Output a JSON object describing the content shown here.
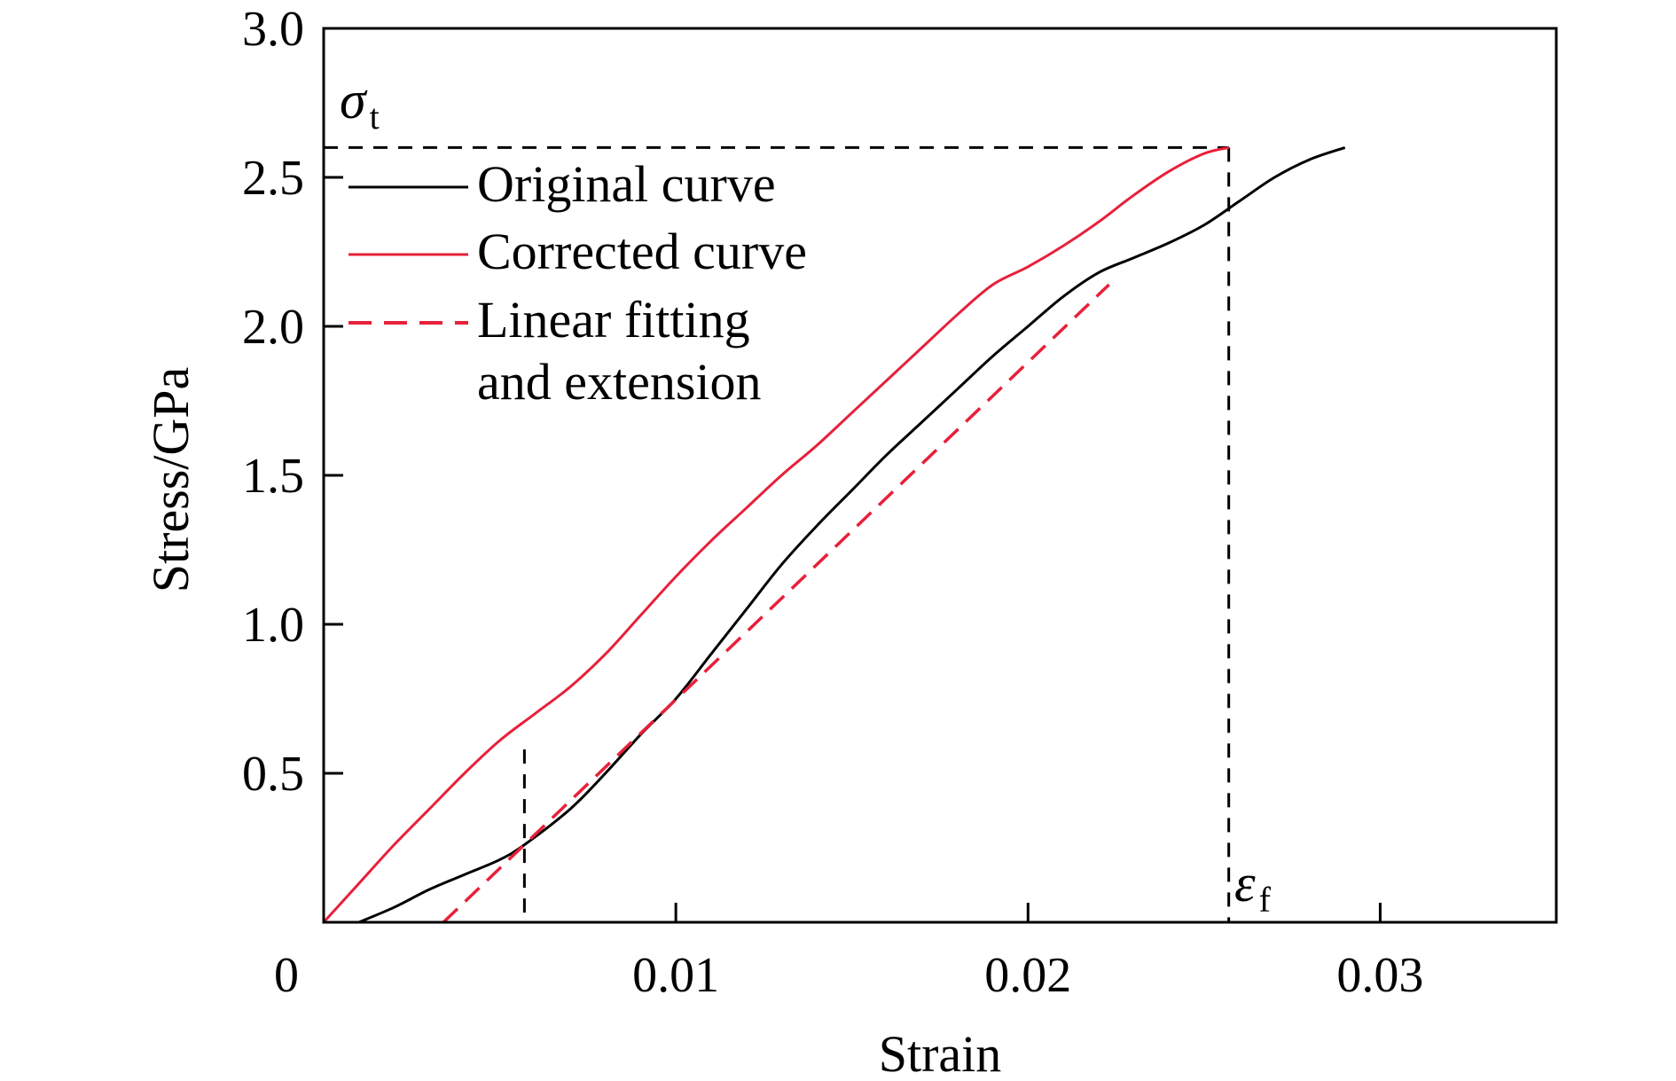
{
  "chart_data": {
    "type": "line",
    "xlabel": "Strain",
    "ylabel": "Stress/GPa",
    "xlim": [
      0,
      0.035
    ],
    "ylim": [
      0,
      3.0
    ],
    "x_ticks": [
      0.01,
      0.02,
      0.03
    ],
    "x_tick_labels": [
      "0.01",
      "0.02",
      "0.03"
    ],
    "origin_label": "0",
    "y_ticks": [
      0.5,
      1.0,
      1.5,
      2.0,
      2.5,
      3.0
    ],
    "y_tick_labels": [
      "0.5",
      "1.0",
      "1.5",
      "2.0",
      "2.5",
      "3.0"
    ],
    "grid": false,
    "legend_position": "upper-left",
    "series": [
      {
        "name": "Original curve",
        "color": "#000000",
        "style": "solid",
        "points": [
          [
            0.001,
            0.0
          ],
          [
            0.002,
            0.05
          ],
          [
            0.003,
            0.11
          ],
          [
            0.004,
            0.16
          ],
          [
            0.005,
            0.21
          ],
          [
            0.0057,
            0.26
          ],
          [
            0.007,
            0.38
          ],
          [
            0.008,
            0.5
          ],
          [
            0.009,
            0.63
          ],
          [
            0.01,
            0.75
          ],
          [
            0.011,
            0.9
          ],
          [
            0.012,
            1.05
          ],
          [
            0.013,
            1.2
          ],
          [
            0.014,
            1.33
          ],
          [
            0.015,
            1.45
          ],
          [
            0.016,
            1.57
          ],
          [
            0.017,
            1.68
          ],
          [
            0.018,
            1.79
          ],
          [
            0.019,
            1.9
          ],
          [
            0.02,
            2.0
          ],
          [
            0.021,
            2.1
          ],
          [
            0.022,
            2.18
          ],
          [
            0.023,
            2.23
          ],
          [
            0.024,
            2.28
          ],
          [
            0.025,
            2.34
          ],
          [
            0.026,
            2.42
          ],
          [
            0.027,
            2.5
          ],
          [
            0.028,
            2.56
          ],
          [
            0.029,
            2.6
          ]
        ]
      },
      {
        "name": "Corrected curve",
        "color": "#e8203a",
        "style": "solid",
        "points": [
          [
            0.0,
            0.0
          ],
          [
            0.001,
            0.13
          ],
          [
            0.002,
            0.26
          ],
          [
            0.003,
            0.38
          ],
          [
            0.004,
            0.5
          ],
          [
            0.005,
            0.61
          ],
          [
            0.006,
            0.7
          ],
          [
            0.007,
            0.79
          ],
          [
            0.008,
            0.9
          ],
          [
            0.009,
            1.03
          ],
          [
            0.01,
            1.16
          ],
          [
            0.011,
            1.28
          ],
          [
            0.012,
            1.39
          ],
          [
            0.013,
            1.5
          ],
          [
            0.014,
            1.6
          ],
          [
            0.015,
            1.71
          ],
          [
            0.016,
            1.82
          ],
          [
            0.017,
            1.93
          ],
          [
            0.018,
            2.04
          ],
          [
            0.019,
            2.14
          ],
          [
            0.02,
            2.2
          ],
          [
            0.021,
            2.27
          ],
          [
            0.022,
            2.35
          ],
          [
            0.023,
            2.44
          ],
          [
            0.024,
            2.52
          ],
          [
            0.025,
            2.58
          ],
          [
            0.0257,
            2.6
          ]
        ]
      },
      {
        "name": "Linear fitting\nand extension",
        "color": "#e8203a",
        "style": "dashed",
        "points": [
          [
            0.0034,
            0.0
          ],
          [
            0.0223,
            2.14
          ]
        ]
      }
    ],
    "annotations": [
      {
        "text": "σ",
        "subscript": "t",
        "at": [
          0.0,
          2.6
        ]
      },
      {
        "text": "ε",
        "subscript": "f",
        "at": [
          0.0257,
          0.0
        ]
      }
    ],
    "reference_lines": {
      "sigma_t": 2.6,
      "epsilon_f": 0.0257,
      "linear_start_strain": 0.0057,
      "linear_start_top": 0.58
    }
  }
}
